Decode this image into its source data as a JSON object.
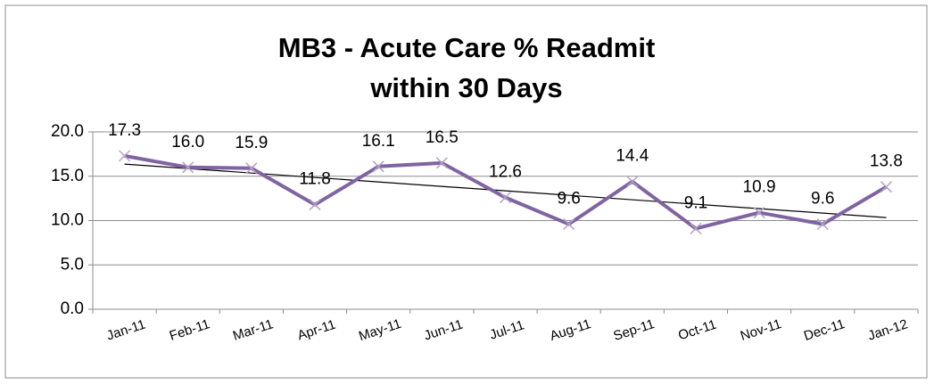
{
  "chart_data": {
    "type": "line",
    "title": [
      "MB3 - Acute Care % Readmit",
      "within 30 Days"
    ],
    "categories": [
      "Jan-11",
      "Feb-11",
      "Mar-11",
      "Apr-11",
      "May-11",
      "Jun-11",
      "Jul-11",
      "Aug-11",
      "Sep-11",
      "Oct-11",
      "Nov-11",
      "Dec-11",
      "Jan-12"
    ],
    "values": [
      17.3,
      16.0,
      15.9,
      11.8,
      16.1,
      16.5,
      12.6,
      9.6,
      14.4,
      9.1,
      10.9,
      9.6,
      13.8
    ],
    "value_labels": [
      "17.3",
      "16.0",
      "15.9",
      "11.8",
      "16.1",
      "16.5",
      "12.6",
      "9.6",
      "14.4",
      "9.1",
      "10.9",
      "9.6",
      "13.8"
    ],
    "color": "#8064a2",
    "trendline": "linear",
    "trendline_color": "#000000",
    "ylim": [
      0,
      20
    ],
    "yticks": [
      {
        "value": 0,
        "label": "0.0"
      },
      {
        "value": 5,
        "label": "5.0"
      },
      {
        "value": 10,
        "label": "10.0"
      },
      {
        "value": 15,
        "label": "15.0"
      },
      {
        "value": 20,
        "label": "20.0"
      }
    ],
    "grid": true
  }
}
